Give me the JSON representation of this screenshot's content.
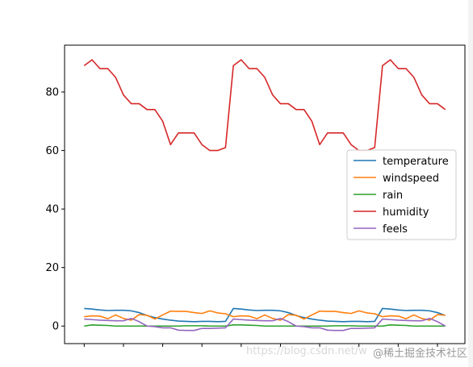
{
  "chart_data": {
    "type": "line",
    "title": "",
    "xlabel": "",
    "ylabel": "",
    "x": [
      0,
      1,
      2,
      3,
      4,
      5,
      6,
      7,
      8,
      9,
      10,
      11,
      12,
      13,
      14,
      15,
      16,
      17,
      18,
      19,
      20,
      21,
      22,
      23,
      24,
      25,
      26,
      27,
      28,
      29,
      30,
      31,
      32,
      33,
      34,
      35,
      36,
      37,
      38,
      39,
      40,
      41,
      42,
      43,
      44,
      45,
      46
    ],
    "xlim": [
      -2.5,
      48.5
    ],
    "ylim": [
      -6,
      96
    ],
    "yticks": [
      0,
      20,
      40,
      60,
      80
    ],
    "xticks": [
      0,
      5,
      10,
      15,
      20,
      25,
      30,
      35,
      40,
      45
    ],
    "series": [
      {
        "name": "temperature",
        "color": "#1f77b4",
        "values": [
          6.0,
          5.8,
          5.5,
          5.3,
          5.4,
          5.4,
          5.2,
          4.6,
          3.6,
          2.9,
          2.4,
          2.0,
          1.7,
          1.6,
          1.5,
          1.6,
          1.6,
          1.5,
          1.6,
          6.0,
          5.8,
          5.5,
          5.3,
          5.4,
          5.4,
          5.2,
          4.6,
          3.6,
          2.9,
          2.4,
          2.0,
          1.7,
          1.6,
          1.5,
          1.6,
          1.6,
          1.5,
          1.6,
          6.0,
          5.8,
          5.5,
          5.3,
          5.4,
          5.4,
          5.2,
          4.6,
          3.6
        ]
      },
      {
        "name": "windspeed",
        "color": "#ff7f0e",
        "values": [
          3.2,
          3.5,
          3.4,
          2.5,
          3.8,
          2.6,
          2.0,
          3.9,
          3.7,
          2.4,
          3.8,
          5.1,
          5.0,
          5.0,
          4.6,
          4.3,
          5.2,
          4.5,
          4.2,
          3.2,
          3.5,
          3.4,
          2.5,
          3.8,
          2.6,
          2.0,
          3.9,
          3.7,
          2.4,
          3.8,
          5.1,
          5.0,
          5.0,
          4.6,
          4.3,
          5.2,
          4.5,
          4.2,
          3.2,
          3.5,
          3.4,
          2.5,
          3.8,
          2.6,
          2.0,
          3.9,
          3.7
        ]
      },
      {
        "name": "rain",
        "color": "#2ca02c",
        "values": [
          0.0,
          0.4,
          0.3,
          0.2,
          0.0,
          0.0,
          0.0,
          0.0,
          0.0,
          0.0,
          0.0,
          0.0,
          0.0,
          0.1,
          0.1,
          0.1,
          0.0,
          0.0,
          0.0,
          0.4,
          0.4,
          0.3,
          0.2,
          0.0,
          0.0,
          0.0,
          0.0,
          0.0,
          0.0,
          0.0,
          0.0,
          0.0,
          0.1,
          0.1,
          0.1,
          0.0,
          0.0,
          0.0,
          0.0,
          0.4,
          0.3,
          0.2,
          0.0,
          0.0,
          0.0,
          0.0,
          0.0
        ]
      },
      {
        "name": "humidity",
        "color": "#d62728",
        "values": [
          89,
          91,
          88,
          88,
          85,
          79,
          76,
          76,
          74,
          74,
          70,
          62,
          66,
          66,
          66,
          62,
          60,
          60,
          61,
          89,
          91,
          88,
          88,
          85,
          79,
          76,
          76,
          74,
          74,
          70,
          62,
          66,
          66,
          66,
          62,
          60,
          60,
          61,
          89,
          91,
          88,
          88,
          85,
          79,
          76,
          76,
          74
        ]
      },
      {
        "name": "feels",
        "color": "#9467bd",
        "values": [
          2.4,
          2.2,
          2.0,
          1.9,
          1.8,
          1.8,
          2.6,
          1.5,
          0.0,
          -0.2,
          -0.6,
          -0.6,
          -1.4,
          -1.5,
          -1.5,
          -0.8,
          -0.8,
          -0.7,
          -0.6,
          2.4,
          2.2,
          2.0,
          1.9,
          1.8,
          1.8,
          2.6,
          1.5,
          0.0,
          -0.2,
          -0.6,
          -0.6,
          -1.4,
          -1.5,
          -1.5,
          -0.8,
          -0.8,
          -0.7,
          -0.6,
          2.4,
          2.2,
          2.0,
          1.9,
          1.8,
          1.8,
          2.6,
          1.5,
          0.0
        ]
      }
    ],
    "legend": {
      "position": "center-right",
      "entries": [
        "temperature",
        "windspeed",
        "rain",
        "humidity",
        "feels"
      ]
    },
    "grid": false
  },
  "watermark": {
    "left_text": "https://blog.csdn.net/w",
    "right_text": "@稀土掘金技术社区"
  }
}
